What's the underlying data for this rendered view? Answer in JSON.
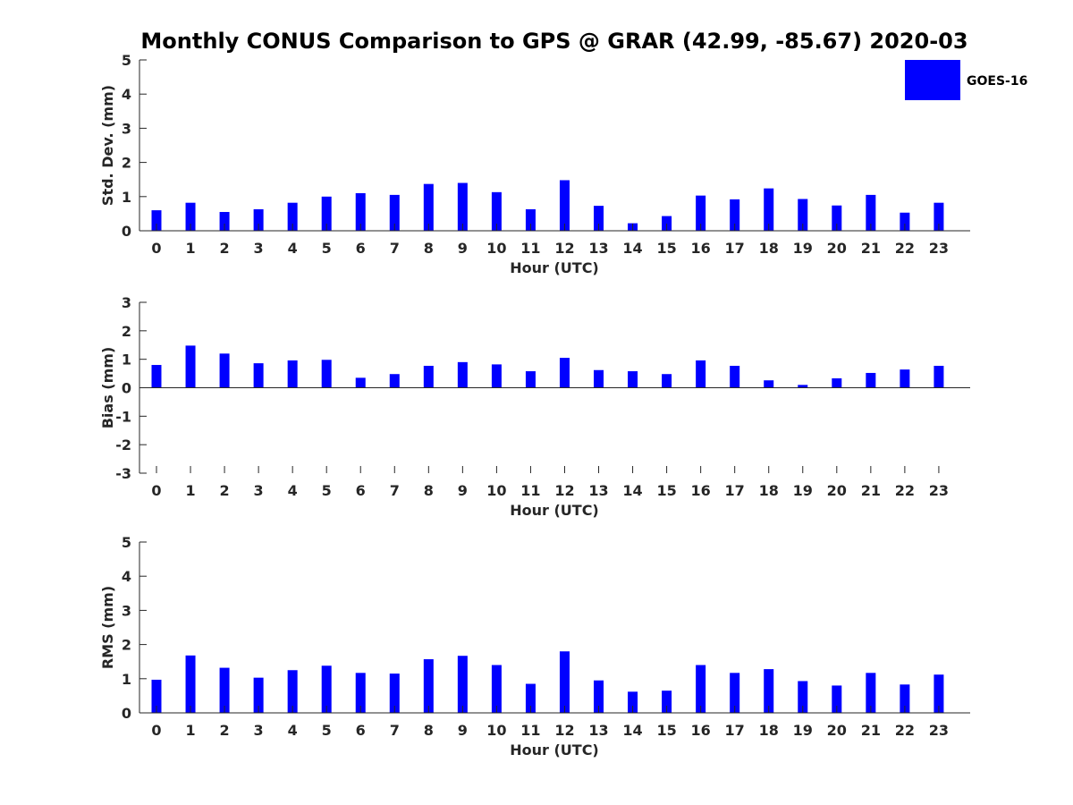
{
  "title": "Monthly CONUS Comparison to GPS @ GRAR (42.99, -85.67) 2020-03",
  "legend": {
    "label": "GOES-16",
    "color": "#0000ff"
  },
  "chart_data": [
    {
      "type": "bar",
      "series": [
        {
          "name": "GOES-16",
          "color": "#0000ff",
          "values": [
            0.6,
            0.82,
            0.55,
            0.63,
            0.82,
            1.0,
            1.1,
            1.05,
            1.37,
            1.4,
            1.13,
            0.63,
            1.48,
            0.73,
            0.22,
            0.43,
            1.03,
            0.92,
            1.24,
            0.93,
            0.74,
            1.05,
            0.53,
            0.82
          ]
        }
      ],
      "categories": [
        "0",
        "1",
        "2",
        "3",
        "4",
        "5",
        "6",
        "7",
        "8",
        "9",
        "10",
        "11",
        "12",
        "13",
        "14",
        "15",
        "16",
        "17",
        "18",
        "19",
        "20",
        "21",
        "22",
        "23"
      ],
      "xlabel": "Hour (UTC)",
      "ylabel": "Std. Dev. (mm)",
      "ylim": [
        0,
        5
      ],
      "yticks": [
        "0",
        "1",
        "2",
        "3",
        "4",
        "5"
      ],
      "grid": false
    },
    {
      "type": "bar",
      "series": [
        {
          "name": "GOES-16",
          "color": "#0000ff",
          "values": [
            0.8,
            1.48,
            1.2,
            0.86,
            0.96,
            0.98,
            0.35,
            0.48,
            0.77,
            0.9,
            0.82,
            0.58,
            1.05,
            0.62,
            0.58,
            0.48,
            0.96,
            0.77,
            0.26,
            0.1,
            0.33,
            0.52,
            0.64,
            0.77
          ]
        }
      ],
      "categories": [
        "0",
        "1",
        "2",
        "3",
        "4",
        "5",
        "6",
        "7",
        "8",
        "9",
        "10",
        "11",
        "12",
        "13",
        "14",
        "15",
        "16",
        "17",
        "18",
        "19",
        "20",
        "21",
        "22",
        "23"
      ],
      "xlabel": "Hour (UTC)",
      "ylabel": "Bias (mm)",
      "ylim": [
        -3,
        3
      ],
      "yticks": [
        "-3",
        "-2",
        "-1",
        "0",
        "1",
        "2",
        "3"
      ],
      "grid": false
    },
    {
      "type": "bar",
      "series": [
        {
          "name": "GOES-16",
          "color": "#0000ff",
          "values": [
            0.97,
            1.68,
            1.32,
            1.03,
            1.25,
            1.38,
            1.17,
            1.15,
            1.57,
            1.67,
            1.4,
            0.85,
            1.8,
            0.95,
            0.62,
            0.65,
            1.4,
            1.17,
            1.28,
            0.93,
            0.8,
            1.17,
            0.83,
            1.12
          ]
        }
      ],
      "categories": [
        "0",
        "1",
        "2",
        "3",
        "4",
        "5",
        "6",
        "7",
        "8",
        "9",
        "10",
        "11",
        "12",
        "13",
        "14",
        "15",
        "16",
        "17",
        "18",
        "19",
        "20",
        "21",
        "22",
        "23"
      ],
      "xlabel": "Hour (UTC)",
      "ylabel": "RMS (mm)",
      "ylim": [
        0,
        5
      ],
      "yticks": [
        "0",
        "1",
        "2",
        "3",
        "4",
        "5"
      ],
      "grid": false
    }
  ]
}
